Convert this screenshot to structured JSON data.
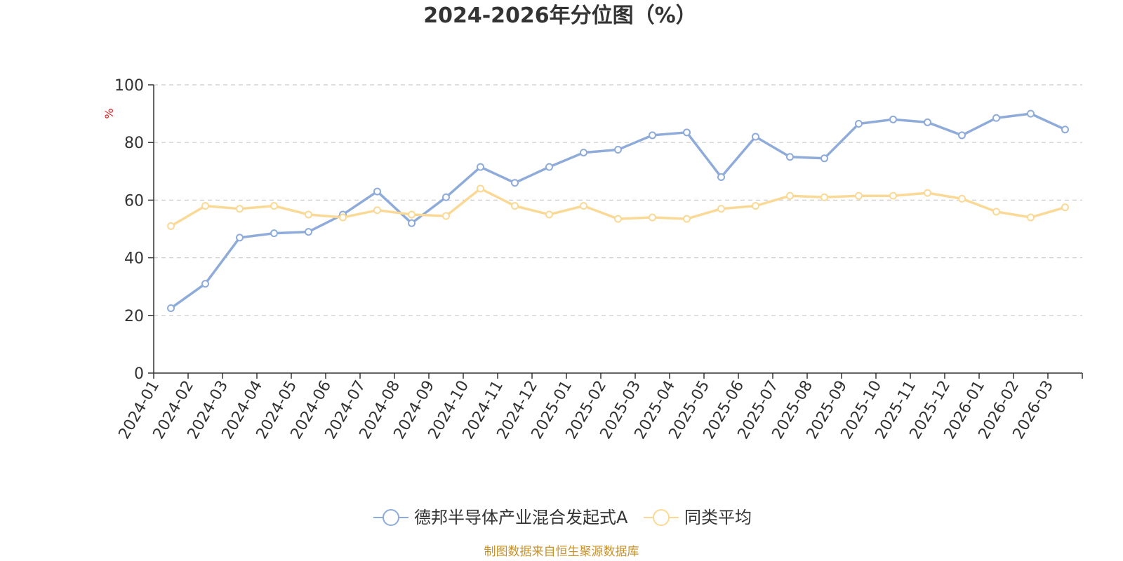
{
  "chart_data": {
    "type": "line",
    "title": "2024-2026年分位图（%）",
    "ylabel": "%",
    "ylim": [
      0,
      100
    ],
    "yticks": [
      "0",
      "20",
      "40",
      "60",
      "80",
      "100"
    ],
    "grid": true,
    "legend_position": "bottom",
    "categories": [
      "2024-01",
      "2024-02",
      "2024-03",
      "2024-04",
      "2024-05",
      "2024-06",
      "2024-07",
      "2024-08",
      "2024-09",
      "2024-10",
      "2024-11",
      "2024-12",
      "2025-01",
      "2025-02",
      "2025-03",
      "2025-04",
      "2025-05",
      "2025-06",
      "2025-07",
      "2025-08",
      "2025-09",
      "2025-10",
      "2025-11",
      "2025-12",
      "2026-01",
      "2026-02",
      "2026-03"
    ],
    "series": [
      {
        "name": "德邦半导体产业混合发起式A",
        "color": "#8eabd9",
        "values": [
          22.5,
          31,
          47,
          48.5,
          49,
          55,
          63,
          52,
          61,
          71.5,
          66,
          71.5,
          76.5,
          77.5,
          82.5,
          83.5,
          68,
          82,
          75,
          74.5,
          86.5,
          88,
          87,
          82.5,
          88.5,
          90,
          84.5
        ]
      },
      {
        "name": "同类平均",
        "color": "#fad996",
        "values": [
          51,
          58,
          57,
          58,
          55,
          54,
          56.5,
          55,
          54.5,
          64,
          58,
          55,
          58,
          53.5,
          54,
          53.5,
          57,
          58,
          61.5,
          61,
          61.5,
          61.5,
          62.5,
          60.5,
          56,
          54,
          57.5
        ]
      }
    ]
  },
  "footer": {
    "source": "制图数据来自恒生聚源数据库"
  }
}
